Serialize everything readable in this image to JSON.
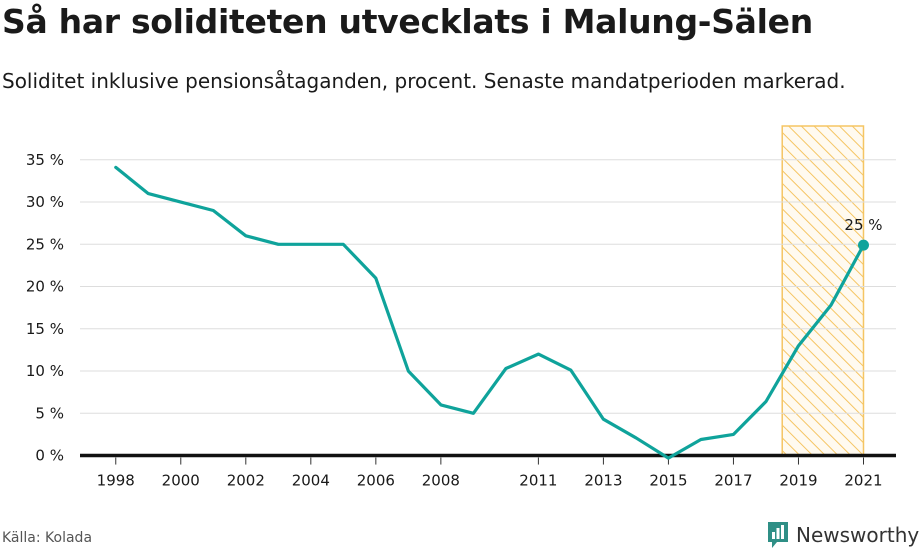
{
  "title": "Så har soliditeten utvecklats i Malung-Sälen",
  "subtitle": "Soliditet inklusive pensionsåtaganden, procent. Senaste mandatperioden markerad.",
  "source": "Källa: Kolada",
  "brand": "Newsworthy",
  "colors": {
    "line": "#0fa39b",
    "highlight_fill": "#f5c563",
    "grid": "#dddddd",
    "zero_line": "#111111",
    "text": "#1a1a1a"
  },
  "chart_data": {
    "type": "line",
    "title": "Så har soliditeten utvecklats i Malung-Sälen",
    "subtitle": "Soliditet inklusive pensionsåtaganden, procent. Senaste mandatperioden markerad.",
    "xlabel": "",
    "ylabel": "",
    "x": [
      1998,
      1999,
      2000,
      2001,
      2002,
      2003,
      2004,
      2005,
      2006,
      2007,
      2008,
      2009,
      2010,
      2011,
      2012,
      2013,
      2014,
      2015,
      2016,
      2017,
      2018,
      2019,
      2020,
      2021
    ],
    "series": [
      {
        "values": [
          34.1,
          31,
          30,
          29,
          26,
          25,
          25,
          25,
          21,
          10,
          6,
          5,
          10.3,
          12,
          10.1,
          4.3,
          2.1,
          -0.3,
          1.9,
          2.5,
          6.4,
          13,
          17.8,
          24.9
        ]
      }
    ],
    "xticks": [
      1998,
      2000,
      2002,
      2004,
      2006,
      2008,
      2011,
      2013,
      2015,
      2017,
      2019,
      2021
    ],
    "yticks": [
      0,
      5,
      10,
      15,
      20,
      25,
      30,
      35
    ],
    "ytick_labels": [
      "0 %",
      "5 %",
      "10 %",
      "15 %",
      "20 %",
      "25 %",
      "30 %",
      "35 %"
    ],
    "xlim": [
      1996.9,
      2022
    ],
    "ylim": [
      -1,
      39
    ],
    "highlight_range": [
      2018.5,
      2021
    ],
    "highlight_pattern": "diagonal-hatch",
    "end_label": "25 %",
    "end_marker": true,
    "grid": "horizontal"
  }
}
